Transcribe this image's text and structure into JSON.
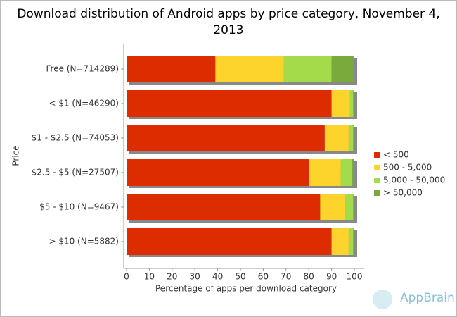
{
  "chart_data": {
    "type": "stacked-bar-horizontal",
    "title": "Download distribution of Android apps by price category, November 4, 2013",
    "x_label": "Percentage of apps per download category",
    "y_label": "Price",
    "categories": [
      "Free (N=714289)",
      "< $1 (N=46290)",
      "$1 - $2.5 (N=74053)",
      "$2.5 - $5 (N=27507)",
      "$5 - $10 (N=9467)",
      "> $10 (N=5882)"
    ],
    "series": [
      {
        "name": "< 500",
        "color": "#dd2c00",
        "values": [
          39,
          90,
          87,
          80,
          85,
          90
        ]
      },
      {
        "name": "500 - 5,000",
        "color": "#fcd42c",
        "values": [
          30,
          8,
          10.5,
          14,
          11,
          7.5
        ]
      },
      {
        "name": "5,000 - 50,000",
        "color": "#a3db4a",
        "values": [
          21,
          1.5,
          2,
          5,
          3.5,
          2
        ]
      },
      {
        "name": "> 50,000",
        "color": "#7aaa3c",
        "values": [
          10,
          0.5,
          0.5,
          1,
          0.5,
          0.5
        ]
      }
    ],
    "xlim": [
      0,
      100
    ],
    "xticks": [
      0,
      10,
      20,
      30,
      40,
      50,
      60,
      70,
      80,
      90,
      100
    ],
    "legend": "right",
    "watermark": "AppBrain"
  }
}
